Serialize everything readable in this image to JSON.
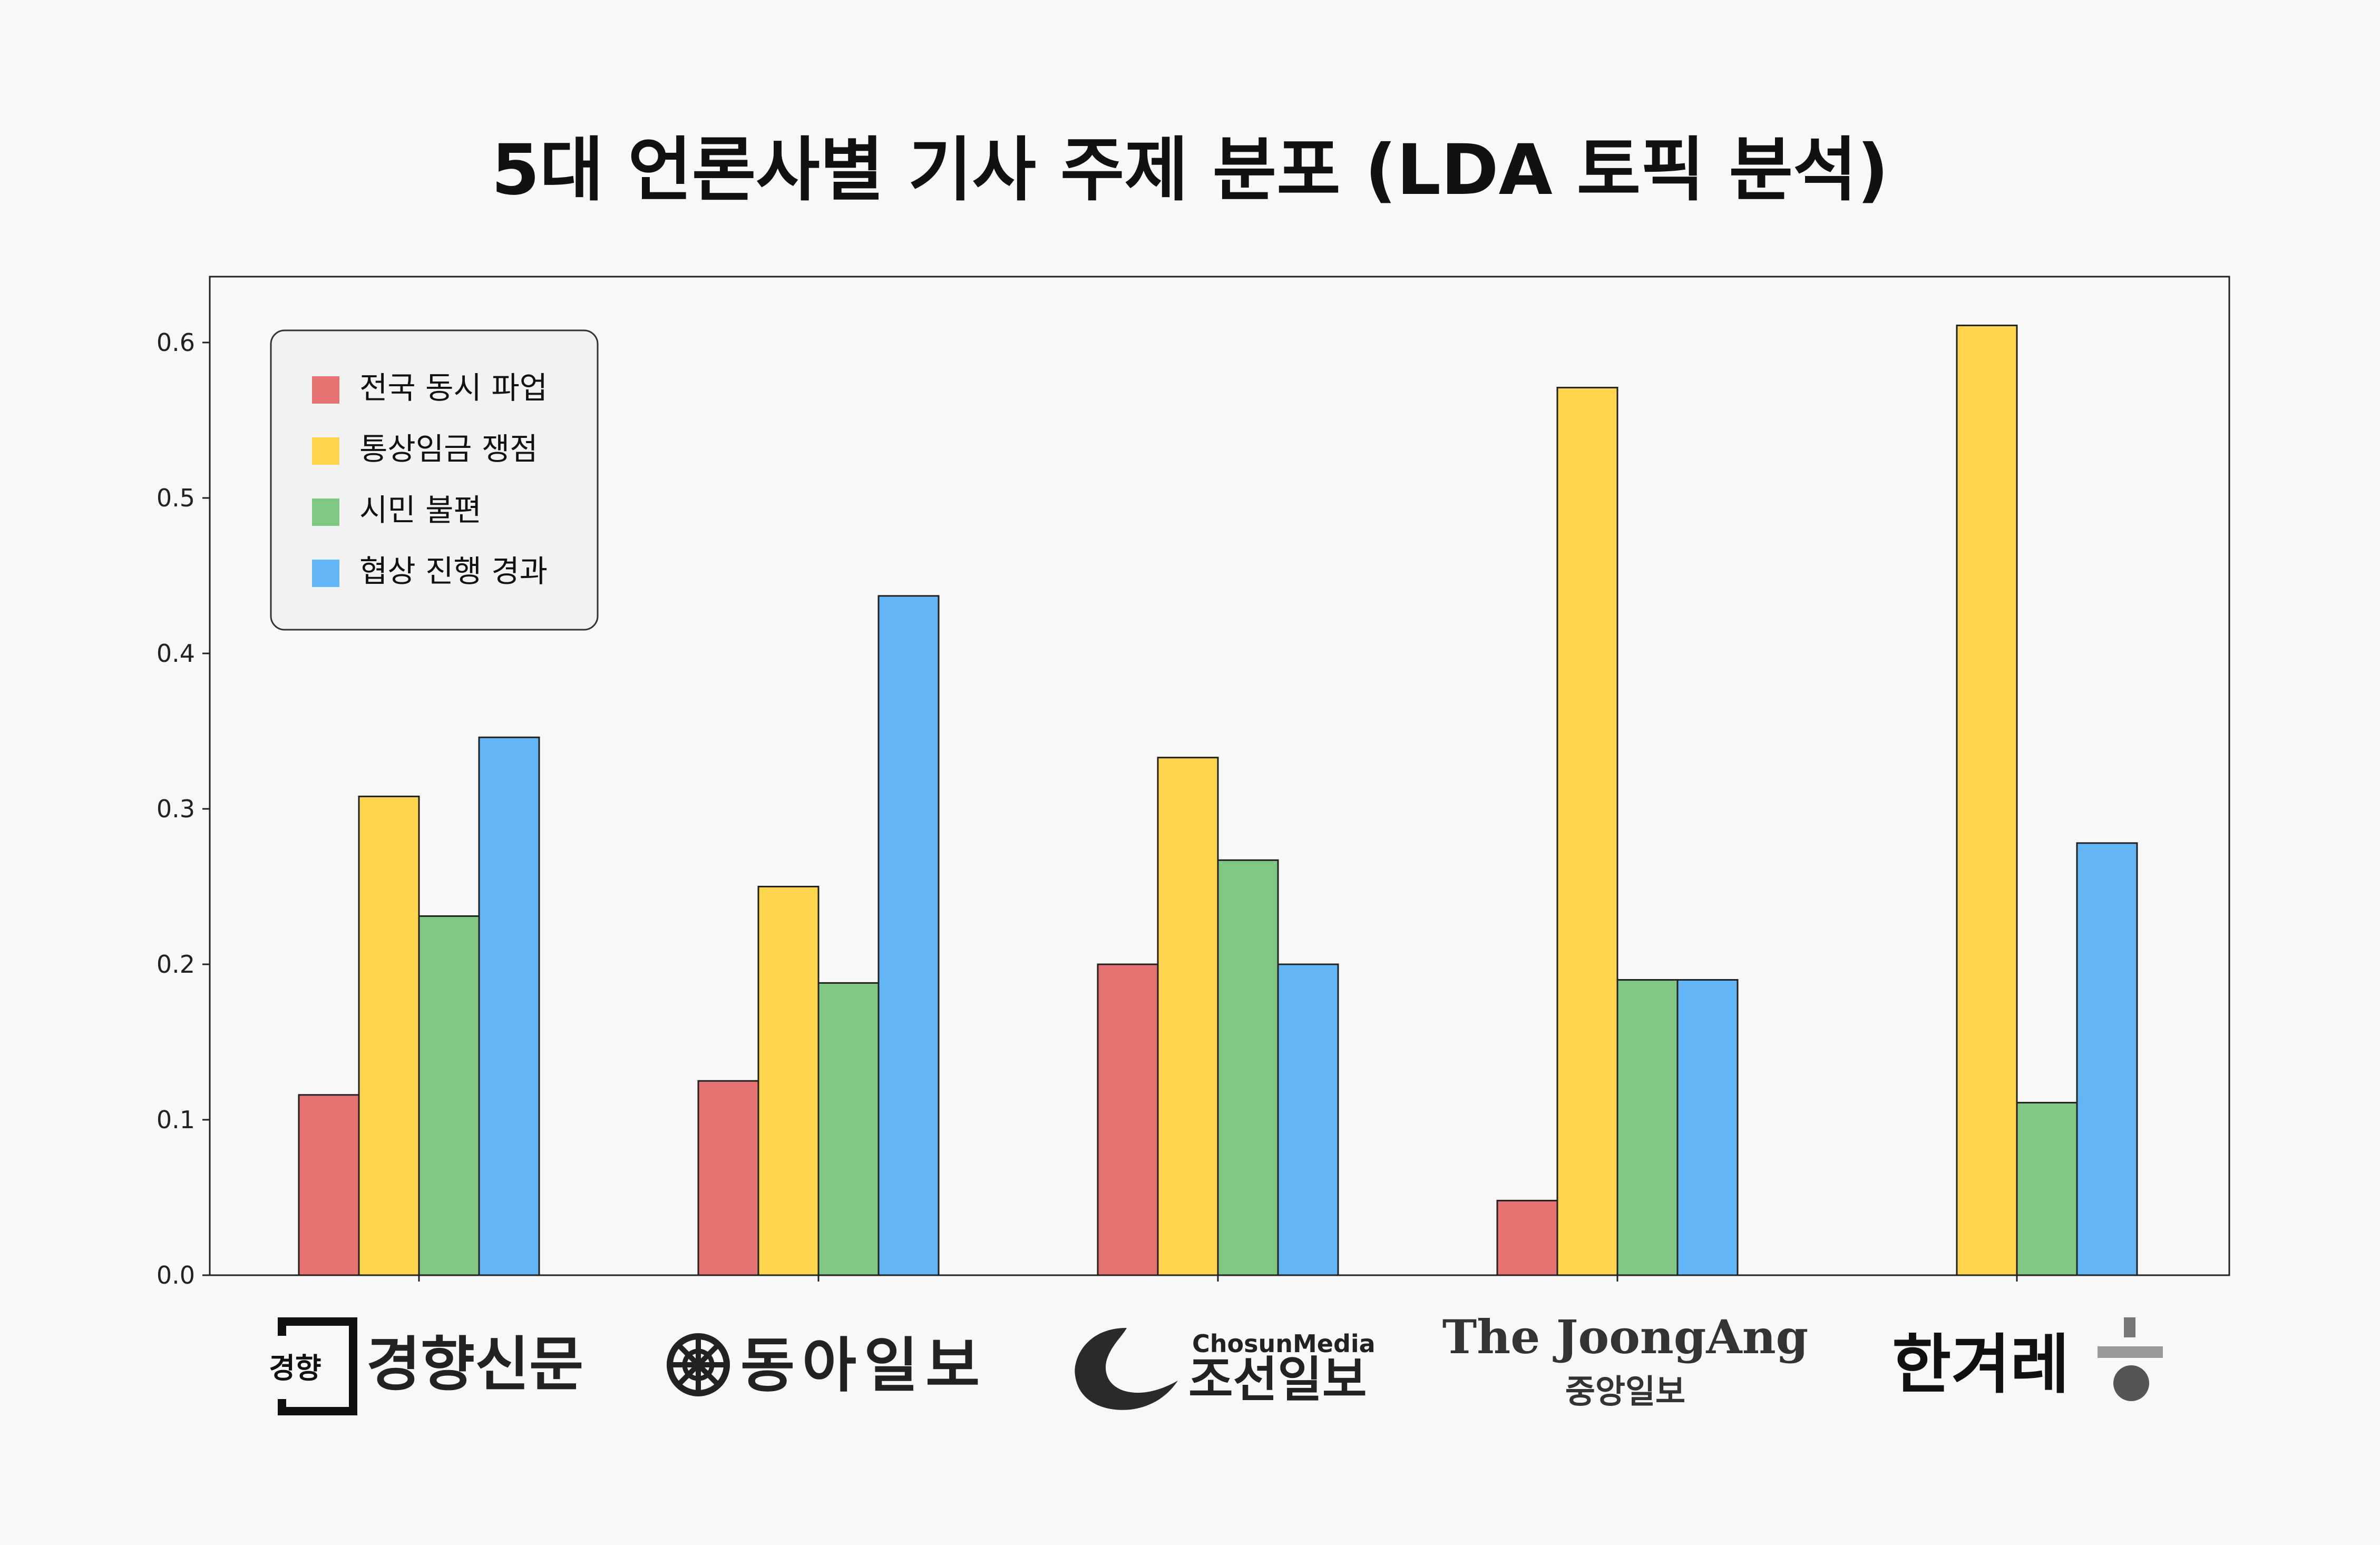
{
  "chart_data": {
    "type": "bar",
    "title": "5대 언론사별 기사 주제 분포 (LDA 토픽 분석)",
    "xlabel": "",
    "ylabel": "",
    "ylim": [
      0,
      0.64
    ],
    "yticks": [
      "0.0",
      "0.1",
      "0.2",
      "0.3",
      "0.4",
      "0.5",
      "0.6"
    ],
    "grid": false,
    "legend_position": "top-left",
    "categories": [
      "경향신문",
      "동아일보",
      "조선일보",
      "중앙일보",
      "한겨레"
    ],
    "series": [
      {
        "name": "전국 동시 파업",
        "color": "#e57373",
        "values": [
          0.116,
          0.125,
          0.2,
          0.048,
          0.0
        ]
      },
      {
        "name": "통상임금 쟁점",
        "color": "#ffd54f",
        "values": [
          0.308,
          0.25,
          0.333,
          0.571,
          0.611
        ]
      },
      {
        "name": "시민 불편",
        "color": "#81c784",
        "values": [
          0.231,
          0.188,
          0.267,
          0.19,
          0.111
        ]
      },
      {
        "name": "협상 진행 경과",
        "color": "#64b5f6",
        "values": [
          0.346,
          0.437,
          0.2,
          0.19,
          0.278
        ]
      }
    ]
  },
  "logos": {
    "khan": {
      "small": "경향",
      "text": "경향신문"
    },
    "donga": {
      "text": "동아일보"
    },
    "chosun": {
      "top": "ChosunMedia",
      "text": "조선일보"
    },
    "joongang": {
      "top": "The JoongAng",
      "text": "중앙일보"
    },
    "hani": {
      "text": "한겨레"
    }
  }
}
